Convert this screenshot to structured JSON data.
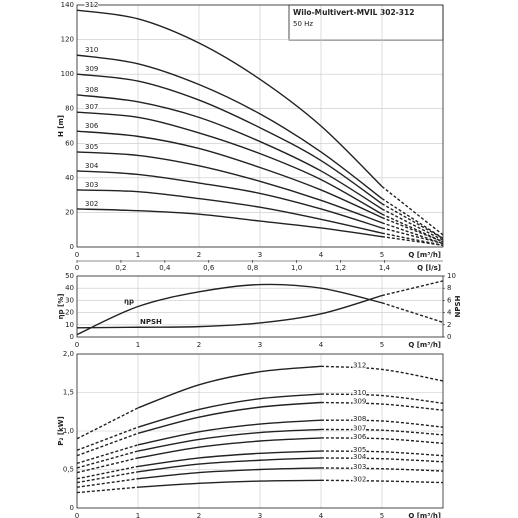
{
  "chart_data": [
    {
      "type": "line",
      "title": "Wilo-Multivert-MVIL 302-312",
      "subtitle": "50 Hz",
      "xlabel": "Q [m³/h]",
      "ylabel": "H [m]",
      "x2label": "Q [l/s]",
      "x": [
        0,
        1,
        2,
        3,
        4,
        5,
        6
      ],
      "xlim": [
        0,
        6
      ],
      "xticks": [
        0,
        1,
        2,
        3,
        4,
        5
      ],
      "x2lim": [
        0,
        1.6667
      ],
      "x2ticks": [
        0,
        {
          "value": 0.2,
          "label": "0,2"
        },
        {
          "value": 0.4,
          "label": "0,4"
        },
        {
          "value": 0.6,
          "label": "0,6"
        },
        {
          "value": 0.8,
          "label": "0,8"
        },
        {
          "value": 1.0,
          "label": "1,0"
        },
        {
          "value": 1.2,
          "label": "1,2"
        },
        {
          "value": 1.4,
          "label": "1,4"
        }
      ],
      "ylim": [
        0,
        140
      ],
      "yticks": [
        0,
        20,
        40,
        60,
        80,
        100,
        120,
        140
      ],
      "grid": true,
      "solid_xlim": [
        0,
        5
      ],
      "series": [
        {
          "name": "312",
          "color": "#222222",
          "values": [
            137,
            132,
            118,
            97,
            70,
            35,
            7
          ]
        },
        {
          "name": "310",
          "color": "#222222",
          "values": [
            111,
            106,
            94,
            77,
            55,
            28,
            5
          ]
        },
        {
          "name": "309",
          "color": "#222222",
          "values": [
            100,
            96,
            85,
            69,
            50,
            25,
            5
          ]
        },
        {
          "name": "308",
          "color": "#222222",
          "values": [
            88,
            84,
            75,
            61,
            44,
            22,
            4
          ]
        },
        {
          "name": "307",
          "color": "#222222",
          "values": [
            78,
            75,
            66,
            54,
            39,
            19,
            3
          ]
        },
        {
          "name": "306",
          "color": "#222222",
          "values": [
            67,
            64,
            57,
            46,
            33,
            17,
            3
          ]
        },
        {
          "name": "305",
          "color": "#222222",
          "values": [
            55,
            53,
            47,
            38,
            27,
            14,
            2
          ]
        },
        {
          "name": "304",
          "color": "#222222",
          "values": [
            44,
            42,
            37,
            31,
            22,
            11,
            2
          ]
        },
        {
          "name": "303",
          "color": "#222222",
          "values": [
            33,
            32,
            28,
            23,
            16,
            8,
            1
          ]
        },
        {
          "name": "302",
          "color": "#222222",
          "values": [
            22,
            21,
            19,
            15,
            11,
            6,
            1
          ]
        }
      ]
    },
    {
      "type": "line",
      "xlabel": "Q [m³/h]",
      "ylabel": "ηp [%]",
      "y2label": "NPSH",
      "x": [
        0,
        1,
        2,
        3,
        4,
        5,
        6
      ],
      "xlim": [
        0,
        6
      ],
      "xticks": [
        0,
        1,
        2,
        3,
        4,
        5
      ],
      "ylim": [
        0,
        50
      ],
      "yticks": [
        0,
        10,
        20,
        30,
        40,
        50
      ],
      "y2lim": [
        0,
        10
      ],
      "y2ticks": [
        0,
        2,
        4,
        6,
        8,
        10
      ],
      "grid": true,
      "solid_xlim": [
        0,
        5
      ],
      "series": [
        {
          "name": "ηp",
          "color": "#222222",
          "values": [
            2,
            25,
            37,
            43,
            40,
            28,
            12
          ]
        },
        {
          "name": "NPSH",
          "color": "#222222",
          "axis": "y2",
          "values": [
            1.5,
            1.6,
            1.7,
            2.3,
            3.8,
            6.8,
            9.2
          ]
        }
      ]
    },
    {
      "type": "line",
      "xlabel": "Q [m³/h]",
      "ylabel": "P₂ [kW]",
      "x": [
        0,
        1,
        2,
        3,
        4,
        5,
        6
      ],
      "xlim": [
        0,
        6
      ],
      "xticks": [
        0,
        1,
        2,
        3,
        4,
        5
      ],
      "ylim": [
        0,
        2
      ],
      "yticks": [
        0,
        {
          "value": 0.5,
          "label": "0,5"
        },
        {
          "value": 1.0,
          "label": "1,0"
        },
        {
          "value": 1.5,
          "label": "1,5"
        },
        {
          "value": 2.0,
          "label": "2,0"
        }
      ],
      "grid": true,
      "solid_xlim": [
        1,
        4
      ],
      "series": [
        {
          "name": "312",
          "color": "#222222",
          "values": [
            0.9,
            1.3,
            1.6,
            1.77,
            1.84,
            1.8,
            1.65
          ]
        },
        {
          "name": "310",
          "color": "#222222",
          "values": [
            0.75,
            1.05,
            1.28,
            1.42,
            1.48,
            1.46,
            1.36
          ]
        },
        {
          "name": "309",
          "color": "#222222",
          "values": [
            0.68,
            0.97,
            1.18,
            1.31,
            1.37,
            1.35,
            1.27
          ]
        },
        {
          "name": "308",
          "color": "#222222",
          "values": [
            0.58,
            0.82,
            0.99,
            1.09,
            1.14,
            1.13,
            1.05
          ]
        },
        {
          "name": "307",
          "color": "#222222",
          "values": [
            0.52,
            0.74,
            0.89,
            0.98,
            1.02,
            1.01,
            0.95
          ]
        },
        {
          "name": "306",
          "color": "#222222",
          "values": [
            0.46,
            0.65,
            0.79,
            0.87,
            0.91,
            0.9,
            0.84
          ]
        },
        {
          "name": "305",
          "color": "#222222",
          "values": [
            0.38,
            0.54,
            0.65,
            0.71,
            0.74,
            0.73,
            0.68
          ]
        },
        {
          "name": "304",
          "color": "#222222",
          "values": [
            0.33,
            0.47,
            0.57,
            0.62,
            0.65,
            0.64,
            0.6
          ]
        },
        {
          "name": "303",
          "color": "#222222",
          "values": [
            0.27,
            0.38,
            0.46,
            0.5,
            0.52,
            0.51,
            0.48
          ]
        },
        {
          "name": "302",
          "color": "#222222",
          "values": [
            0.2,
            0.27,
            0.32,
            0.35,
            0.36,
            0.35,
            0.33
          ]
        }
      ]
    }
  ]
}
